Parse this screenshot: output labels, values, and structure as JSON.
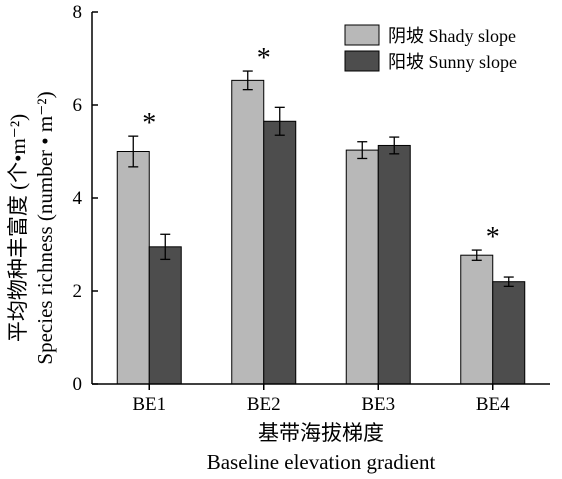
{
  "chart_data": {
    "type": "bar",
    "categories": [
      "BE1",
      "BE2",
      "BE3",
      "BE4"
    ],
    "series": [
      {
        "name": "阴坡 Shady slope",
        "color": "#b8b8b8",
        "values": [
          5.0,
          6.53,
          5.03,
          2.77
        ],
        "errors": [
          0.33,
          0.2,
          0.18,
          0.11
        ]
      },
      {
        "name": "阳坡 Sunny slope",
        "color": "#4d4d4d",
        "values": [
          2.95,
          5.65,
          5.13,
          2.2
        ],
        "errors": [
          0.27,
          0.3,
          0.18,
          0.1
        ]
      }
    ],
    "significance": [
      "*",
      "*",
      "",
      "*"
    ],
    "ylim": [
      0,
      8
    ],
    "yticks": [
      "0",
      "2",
      "4",
      "6",
      "8"
    ],
    "ylabel_cn": "平均物种丰富度 (个•m⁻²)",
    "ylabel_en": "Species richness (number • m⁻²)",
    "xlabel_cn": "基带海拔梯度",
    "xlabel_en": "Baseline elevation gradient",
    "grid": false,
    "legend_position": "top-right"
  }
}
